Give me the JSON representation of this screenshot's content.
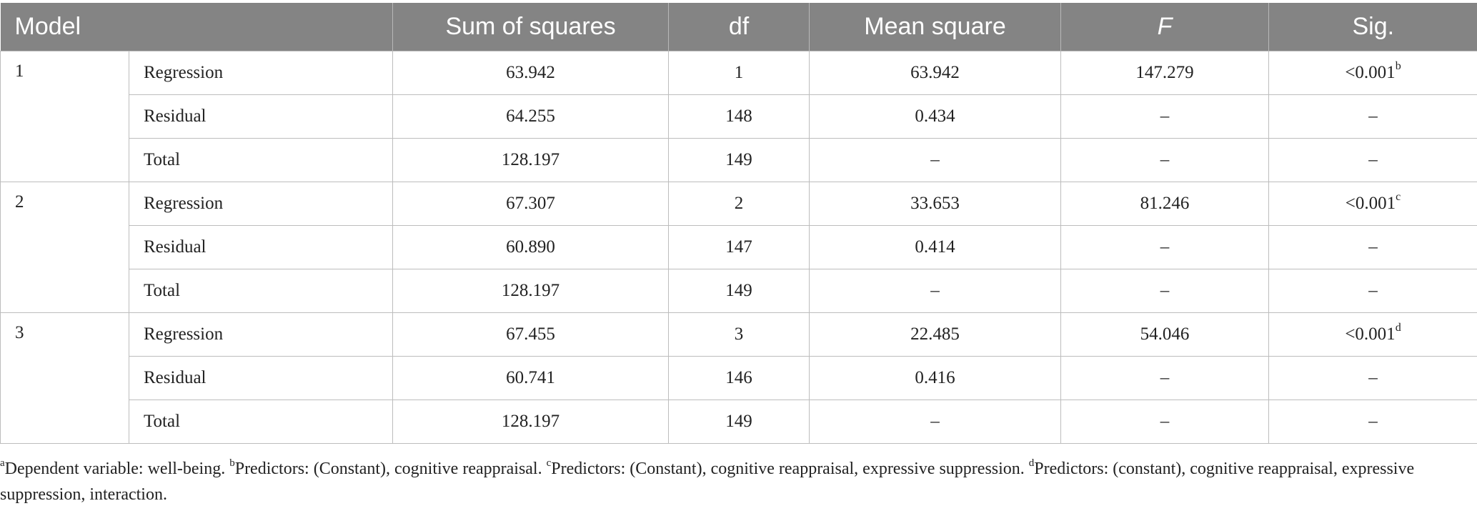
{
  "table": {
    "headers": {
      "model": "Model",
      "sum_of_squares": "Sum of squares",
      "df": "df",
      "mean_square": "Mean square",
      "f": "F",
      "sig": "Sig."
    },
    "models": [
      {
        "label": "1",
        "rows": [
          {
            "source": "Regression",
            "ss": "63.942",
            "df": "1",
            "ms": "63.942",
            "f": "147.279",
            "sig": "<0.001",
            "sig_sup": "b"
          },
          {
            "source": "Residual",
            "ss": "64.255",
            "df": "148",
            "ms": "0.434",
            "f": "–",
            "sig": "–",
            "sig_sup": ""
          },
          {
            "source": "Total",
            "ss": "128.197",
            "df": "149",
            "ms": "–",
            "f": "–",
            "sig": "–",
            "sig_sup": ""
          }
        ]
      },
      {
        "label": "2",
        "rows": [
          {
            "source": "Regression",
            "ss": "67.307",
            "df": "2",
            "ms": "33.653",
            "f": "81.246",
            "sig": "<0.001",
            "sig_sup": "c"
          },
          {
            "source": "Residual",
            "ss": "60.890",
            "df": "147",
            "ms": "0.414",
            "f": "–",
            "sig": "–",
            "sig_sup": ""
          },
          {
            "source": "Total",
            "ss": "128.197",
            "df": "149",
            "ms": "–",
            "f": "–",
            "sig": "–",
            "sig_sup": ""
          }
        ]
      },
      {
        "label": "3",
        "rows": [
          {
            "source": "Regression",
            "ss": "67.455",
            "df": "3",
            "ms": "22.485",
            "f": "54.046",
            "sig": "<0.001",
            "sig_sup": "d"
          },
          {
            "source": "Residual",
            "ss": "60.741",
            "df": "146",
            "ms": "0.416",
            "f": "–",
            "sig": "–",
            "sig_sup": ""
          },
          {
            "source": "Total",
            "ss": "128.197",
            "df": "149",
            "ms": "–",
            "f": "–",
            "sig": "–",
            "sig_sup": ""
          }
        ]
      }
    ]
  },
  "footnotes": [
    {
      "mark": "a",
      "text": "Dependent variable: well-being. "
    },
    {
      "mark": "b",
      "text": "Predictors: (Constant), cognitive reappraisal. "
    },
    {
      "mark": "c",
      "text": "Predictors: (Constant), cognitive reappraisal, expressive suppression. "
    },
    {
      "mark": "d",
      "text": "Predictors: (constant), cognitive reappraisal, expressive suppression, interaction."
    }
  ]
}
